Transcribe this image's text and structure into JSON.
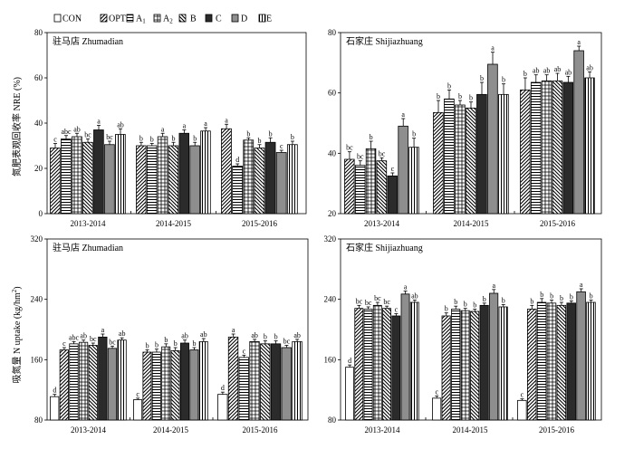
{
  "legend": [
    {
      "key": "CON",
      "label": "CON",
      "sub": ""
    },
    {
      "key": "OPT",
      "label": "OPT",
      "sub": ""
    },
    {
      "key": "A1",
      "label": "A",
      "sub": "1"
    },
    {
      "key": "A2",
      "label": "A",
      "sub": "2"
    },
    {
      "key": "B",
      "label": "B",
      "sub": ""
    },
    {
      "key": "C",
      "label": "C",
      "sub": ""
    },
    {
      "key": "D",
      "label": "D",
      "sub": ""
    },
    {
      "key": "E",
      "label": "E",
      "sub": ""
    }
  ],
  "ylabels": {
    "top": "氮肥表观回收率 NRE (%)",
    "bottom_main": "吸氮量 N uptake (kg/hm",
    "bottom_sup": "2",
    "bottom_end": ")"
  },
  "chart_data": [
    {
      "id": "nre-zhumadian",
      "type": "bar",
      "title": "驻马店 Zhumadian",
      "categories": [
        "2013-2014",
        "2014-2015",
        "2015-2016"
      ],
      "ylim": [
        0,
        80
      ],
      "yticks": [
        "0",
        "20",
        "40",
        "60",
        "80"
      ],
      "series": [
        {
          "key": "OPT",
          "values": [
            29,
            30,
            37.5
          ],
          "err": [
            2,
            1.5,
            2
          ],
          "sig": [
            "c",
            "b",
            "a"
          ]
        },
        {
          "key": "A1",
          "values": [
            33,
            30,
            21
          ],
          "err": [
            1.5,
            1,
            1
          ],
          "sig": [
            "abc",
            "b",
            "d"
          ]
        },
        {
          "key": "A2",
          "values": [
            34,
            34,
            32.5
          ],
          "err": [
            1.5,
            1.5,
            1
          ],
          "sig": [
            "ab",
            "a",
            "b"
          ]
        },
        {
          "key": "B",
          "values": [
            31.5,
            30,
            29
          ],
          "err": [
            1.5,
            1.5,
            1.5
          ],
          "sig": [
            "bc",
            "b",
            "b"
          ]
        },
        {
          "key": "C",
          "values": [
            37,
            35.5,
            31.5
          ],
          "err": [
            2,
            1.5,
            2
          ],
          "sig": [
            "a",
            "a",
            "b"
          ]
        },
        {
          "key": "D",
          "values": [
            30.5,
            30,
            27
          ],
          "err": [
            1.5,
            1.5,
            1
          ],
          "sig": [
            "bc",
            "b",
            "c"
          ]
        },
        {
          "key": "E",
          "values": [
            35,
            36.5,
            30.5
          ],
          "err": [
            2.5,
            1.5,
            1.5
          ],
          "sig": [
            "ab",
            "a",
            "b"
          ]
        }
      ]
    },
    {
      "id": "nre-shijiazhuang",
      "type": "bar",
      "title": "石家庄 Shijiazhuang",
      "categories": [
        "2013-2014",
        "2014-2015",
        "2015-2016"
      ],
      "ylim": [
        20,
        80
      ],
      "yticks": [
        "20",
        "40",
        "60",
        "80"
      ],
      "series": [
        {
          "key": "OPT",
          "values": [
            38,
            53.5,
            61
          ],
          "err": [
            2.5,
            4,
            4
          ],
          "sig": [
            "bc",
            "b",
            "b"
          ]
        },
        {
          "key": "A1",
          "values": [
            36,
            58,
            63.5
          ],
          "err": [
            1.5,
            3,
            2.5
          ],
          "sig": [
            "bc",
            "b",
            "ab"
          ]
        },
        {
          "key": "A2",
          "values": [
            41.5,
            56,
            64
          ],
          "err": [
            2.5,
            1.5,
            2
          ],
          "sig": [
            "b",
            "b",
            "ab"
          ]
        },
        {
          "key": "B",
          "values": [
            37.5,
            55,
            64
          ],
          "err": [
            1,
            2,
            2.5
          ],
          "sig": [
            "bc",
            "b",
            "ab"
          ]
        },
        {
          "key": "C",
          "values": [
            32.5,
            59.5,
            63.5
          ],
          "err": [
            1,
            4,
            2
          ],
          "sig": [
            "c",
            "b",
            "ab"
          ]
        },
        {
          "key": "D",
          "values": [
            49,
            69.5,
            74
          ],
          "err": [
            2.5,
            4,
            1.5
          ],
          "sig": [
            "a",
            "a",
            "a"
          ]
        },
        {
          "key": "E",
          "values": [
            42,
            59.5,
            65
          ],
          "err": [
            3,
            3.5,
            2
          ],
          "sig": [
            "b",
            "b",
            "ab"
          ]
        }
      ]
    },
    {
      "id": "uptake-zhumadian",
      "type": "bar",
      "title": "驻马店 Zhumadian",
      "categories": [
        "2013-2014",
        "2014-2015",
        "2015-2016"
      ],
      "ylim": [
        80,
        320
      ],
      "yticks": [
        "80",
        "160",
        "240",
        "320"
      ],
      "series": [
        {
          "key": "CON",
          "values": [
            111,
            107,
            114
          ],
          "err": [
            3,
            2,
            3
          ],
          "sig": [
            "d",
            "c",
            "d"
          ]
        },
        {
          "key": "OPT",
          "values": [
            173,
            170,
            190
          ],
          "err": [
            3,
            3,
            4
          ],
          "sig": [
            "c",
            "b",
            "a"
          ]
        },
        {
          "key": "A1",
          "values": [
            181,
            170,
            163
          ],
          "err": [
            3,
            4,
            3
          ],
          "sig": [
            "abc",
            "b",
            "c"
          ]
        },
        {
          "key": "A2",
          "values": [
            183,
            177,
            184
          ],
          "err": [
            3,
            4,
            3
          ],
          "sig": [
            "ab",
            "b",
            "ab"
          ]
        },
        {
          "key": "B",
          "values": [
            179,
            172,
            181
          ],
          "err": [
            3,
            4,
            4
          ],
          "sig": [
            "bc",
            "b",
            "b"
          ]
        },
        {
          "key": "C",
          "values": [
            190,
            182,
            181
          ],
          "err": [
            4,
            4,
            4
          ],
          "sig": [
            "a",
            "ab",
            "b"
          ]
        },
        {
          "key": "D",
          "values": [
            175,
            173,
            176
          ],
          "err": [
            3,
            3,
            3
          ],
          "sig": [
            "bc",
            "b",
            "bc"
          ]
        },
        {
          "key": "E",
          "values": [
            186,
            184,
            184
          ],
          "err": [
            3,
            4,
            3
          ],
          "sig": [
            "ab",
            "ab",
            "ab"
          ]
        }
      ]
    },
    {
      "id": "uptake-shijiazhuang",
      "type": "bar",
      "title": "石家庄 Shijiazhuang",
      "categories": [
        "2013-2014",
        "2014-2015",
        "2015-2016"
      ],
      "ylim": [
        80,
        320
      ],
      "yticks": [
        "80",
        "160",
        "240",
        "320"
      ],
      "series": [
        {
          "key": "CON",
          "values": [
            150,
            109,
            106
          ],
          "err": [
            3,
            3,
            2
          ],
          "sig": [
            "d",
            "c",
            "c"
          ]
        },
        {
          "key": "OPT",
          "values": [
            228,
            218,
            227
          ],
          "err": [
            4,
            4,
            5
          ],
          "sig": [
            "bc",
            "b",
            "b"
          ]
        },
        {
          "key": "A1",
          "values": [
            227,
            227,
            236
          ],
          "err": [
            3,
            4,
            5
          ],
          "sig": [
            "bc",
            "b",
            "b"
          ]
        },
        {
          "key": "A2",
          "values": [
            232,
            225,
            235
          ],
          "err": [
            4,
            3,
            4
          ],
          "sig": [
            "bc",
            "b",
            "b"
          ]
        },
        {
          "key": "B",
          "values": [
            228,
            224,
            232
          ],
          "err": [
            3,
            3,
            4
          ],
          "sig": [
            "bc",
            "b",
            "b"
          ]
        },
        {
          "key": "C",
          "values": [
            218,
            232,
            235
          ],
          "err": [
            3,
            3,
            3
          ],
          "sig": [
            "c",
            "b",
            "b"
          ]
        },
        {
          "key": "D",
          "values": [
            247,
            248,
            250
          ],
          "err": [
            4,
            5,
            4
          ],
          "sig": [
            "a",
            "a",
            "a"
          ]
        },
        {
          "key": "E",
          "values": [
            236,
            230,
            236
          ],
          "err": [
            3,
            3,
            3
          ],
          "sig": [
            "ab",
            "b",
            "b"
          ]
        }
      ]
    }
  ]
}
